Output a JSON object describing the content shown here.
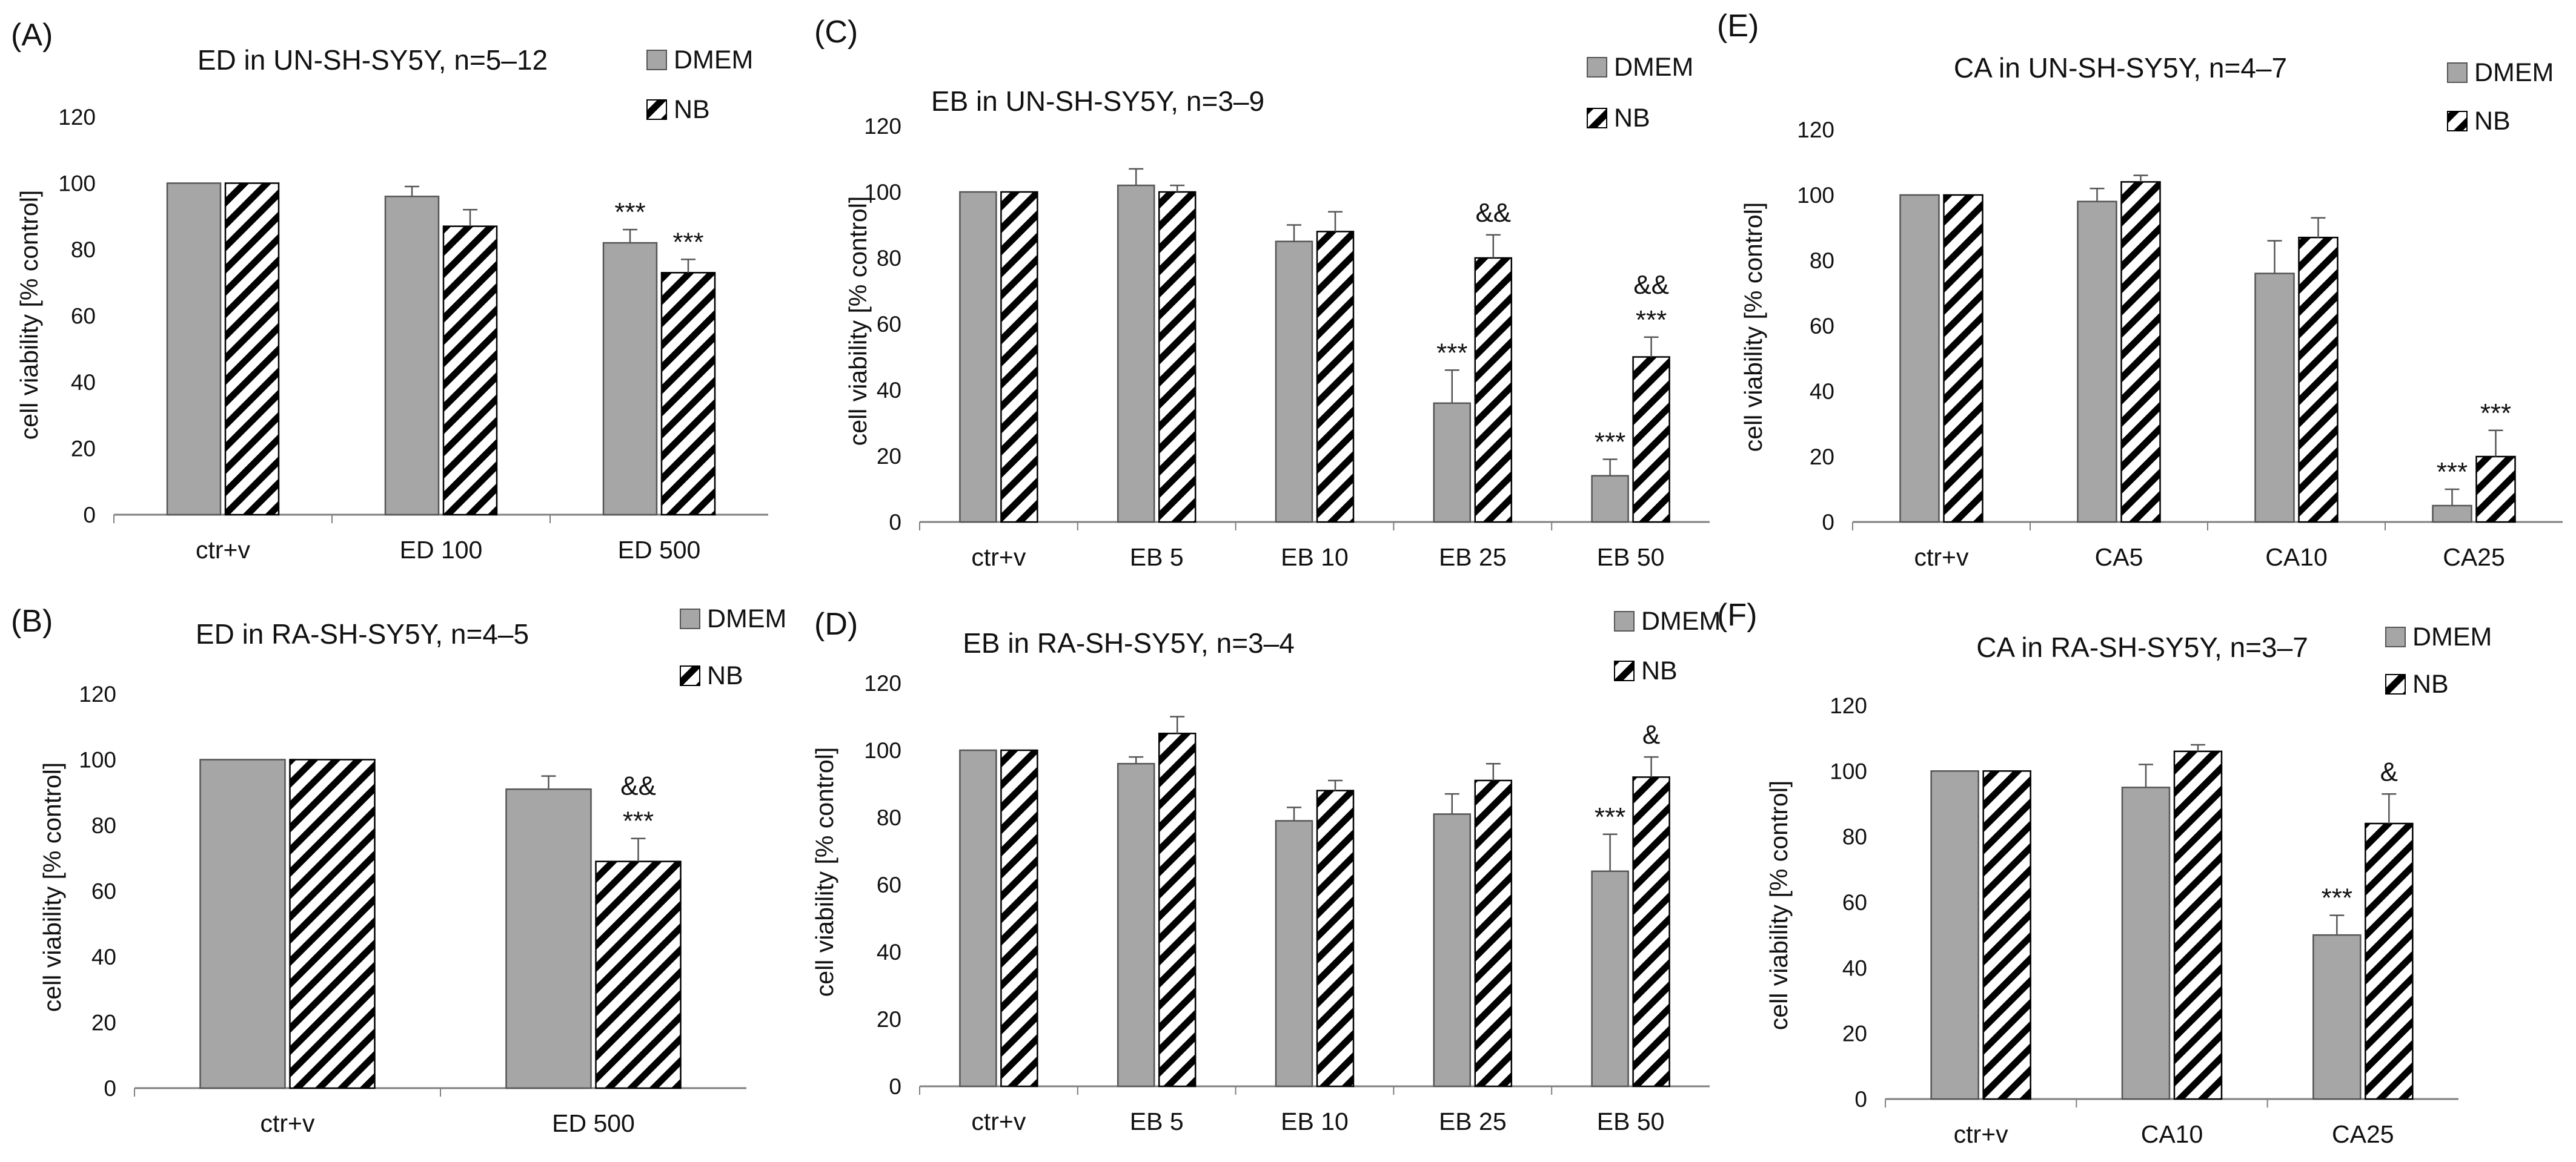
{
  "figure": {
    "legend_labels": [
      "DMEM",
      "NB"
    ],
    "colors": {
      "dmem": "#a6a6a6",
      "nb_stripe": "#000000",
      "nb_bg": "#ffffff",
      "axis": "#7f7f7f",
      "bar_edge": "#555555"
    }
  },
  "chart_data": [
    {
      "panel": "(A)",
      "type": "bar",
      "title": "ED in UN-SH-SY5Y, n=5–12",
      "ylabel": "cell viability [% control]",
      "ylim": [
        0,
        120
      ],
      "yticks": [
        "0",
        "20",
        "40",
        "60",
        "80",
        "100",
        "120"
      ],
      "categories": [
        "ctr+v",
        "ED 100",
        "ED 500"
      ],
      "series": [
        {
          "name": "DMEM",
          "values": [
            100,
            96,
            82
          ],
          "errors": [
            0,
            3,
            4
          ],
          "annotations": [
            "",
            "",
            "***"
          ]
        },
        {
          "name": "NB",
          "values": [
            100,
            87,
            73
          ],
          "errors": [
            0,
            5,
            4
          ],
          "annotations": [
            "",
            "",
            "***"
          ]
        }
      ]
    },
    {
      "panel": "(B)",
      "type": "bar",
      "title": "ED in RA-SH-SY5Y, n=4–5",
      "ylabel": "cell viability [% control]",
      "ylim": [
        0,
        120
      ],
      "yticks": [
        "0",
        "20",
        "40",
        "60",
        "80",
        "100",
        "120"
      ],
      "categories": [
        "ctr+v",
        "ED 500"
      ],
      "series": [
        {
          "name": "DMEM",
          "values": [
            100,
            91
          ],
          "errors": [
            0,
            4
          ],
          "annotations": [
            "",
            ""
          ]
        },
        {
          "name": "NB",
          "values": [
            100,
            69
          ],
          "errors": [
            0,
            7
          ],
          "annotations": [
            "",
            "&&\n***"
          ]
        }
      ]
    },
    {
      "panel": "(C)",
      "type": "bar",
      "title": "EB in UN-SH-SY5Y, n=3–9",
      "ylabel": "cell viability [% control]",
      "ylim": [
        0,
        120
      ],
      "yticks": [
        "0",
        "20",
        "40",
        "60",
        "80",
        "100",
        "120"
      ],
      "categories": [
        "ctr+v",
        "EB 5",
        "EB 10",
        "EB 25",
        "EB 50"
      ],
      "series": [
        {
          "name": "DMEM",
          "values": [
            100,
            102,
            85,
            36,
            14
          ],
          "errors": [
            0,
            5,
            5,
            10,
            5
          ],
          "annotations": [
            "",
            "",
            "",
            "***",
            "***"
          ]
        },
        {
          "name": "NB",
          "values": [
            100,
            100,
            88,
            80,
            50
          ],
          "errors": [
            0,
            2,
            6,
            7,
            6
          ],
          "annotations": [
            "",
            "",
            "",
            "&&",
            "&&\n***"
          ]
        }
      ]
    },
    {
      "panel": "(D)",
      "type": "bar",
      "title": "EB in RA-SH-SY5Y, n=3–4",
      "ylabel": "cell viability [% control]",
      "ylim": [
        0,
        120
      ],
      "yticks": [
        "0",
        "20",
        "40",
        "60",
        "80",
        "100",
        "120"
      ],
      "categories": [
        "ctr+v",
        "EB 5",
        "EB 10",
        "EB 25",
        "EB 50"
      ],
      "series": [
        {
          "name": "DMEM",
          "values": [
            100,
            96,
            79,
            81,
            64
          ],
          "errors": [
            0,
            2,
            4,
            6,
            11
          ],
          "annotations": [
            "",
            "",
            "",
            "",
            "***"
          ]
        },
        {
          "name": "NB",
          "values": [
            100,
            105,
            88,
            91,
            92
          ],
          "errors": [
            0,
            5,
            3,
            5,
            6
          ],
          "annotations": [
            "",
            "",
            "",
            "",
            "&"
          ]
        }
      ]
    },
    {
      "panel": "(E)",
      "type": "bar",
      "title": "CA in UN-SH-SY5Y, n=4–7",
      "ylabel": "cell viability [% control]",
      "ylim": [
        0,
        120
      ],
      "yticks": [
        "0",
        "20",
        "40",
        "60",
        "80",
        "100",
        "120"
      ],
      "categories": [
        "ctr+v",
        "CA5",
        "CA10",
        "CA25"
      ],
      "series": [
        {
          "name": "DMEM",
          "values": [
            100,
            98,
            76,
            5
          ],
          "errors": [
            0,
            4,
            10,
            5
          ],
          "annotations": [
            "",
            "",
            "",
            "***"
          ]
        },
        {
          "name": "NB",
          "values": [
            100,
            104,
            87,
            20
          ],
          "errors": [
            0,
            2,
            6,
            8
          ],
          "annotations": [
            "",
            "",
            "",
            "***"
          ]
        }
      ]
    },
    {
      "panel": "(F)",
      "type": "bar",
      "title": "CA in RA-SH-SY5Y, n=3–7",
      "ylabel": "cell viability [% control]",
      "ylim": [
        0,
        120
      ],
      "yticks": [
        "0",
        "20",
        "40",
        "60",
        "80",
        "100",
        "120"
      ],
      "categories": [
        "ctr+v",
        "CA10",
        "CA25"
      ],
      "series": [
        {
          "name": "DMEM",
          "values": [
            100,
            95,
            50
          ],
          "errors": [
            0,
            7,
            6
          ],
          "annotations": [
            "",
            "",
            "***"
          ]
        },
        {
          "name": "NB",
          "values": [
            100,
            106,
            84
          ],
          "errors": [
            0,
            2,
            9
          ],
          "annotations": [
            "",
            "",
            "&"
          ]
        }
      ]
    }
  ]
}
